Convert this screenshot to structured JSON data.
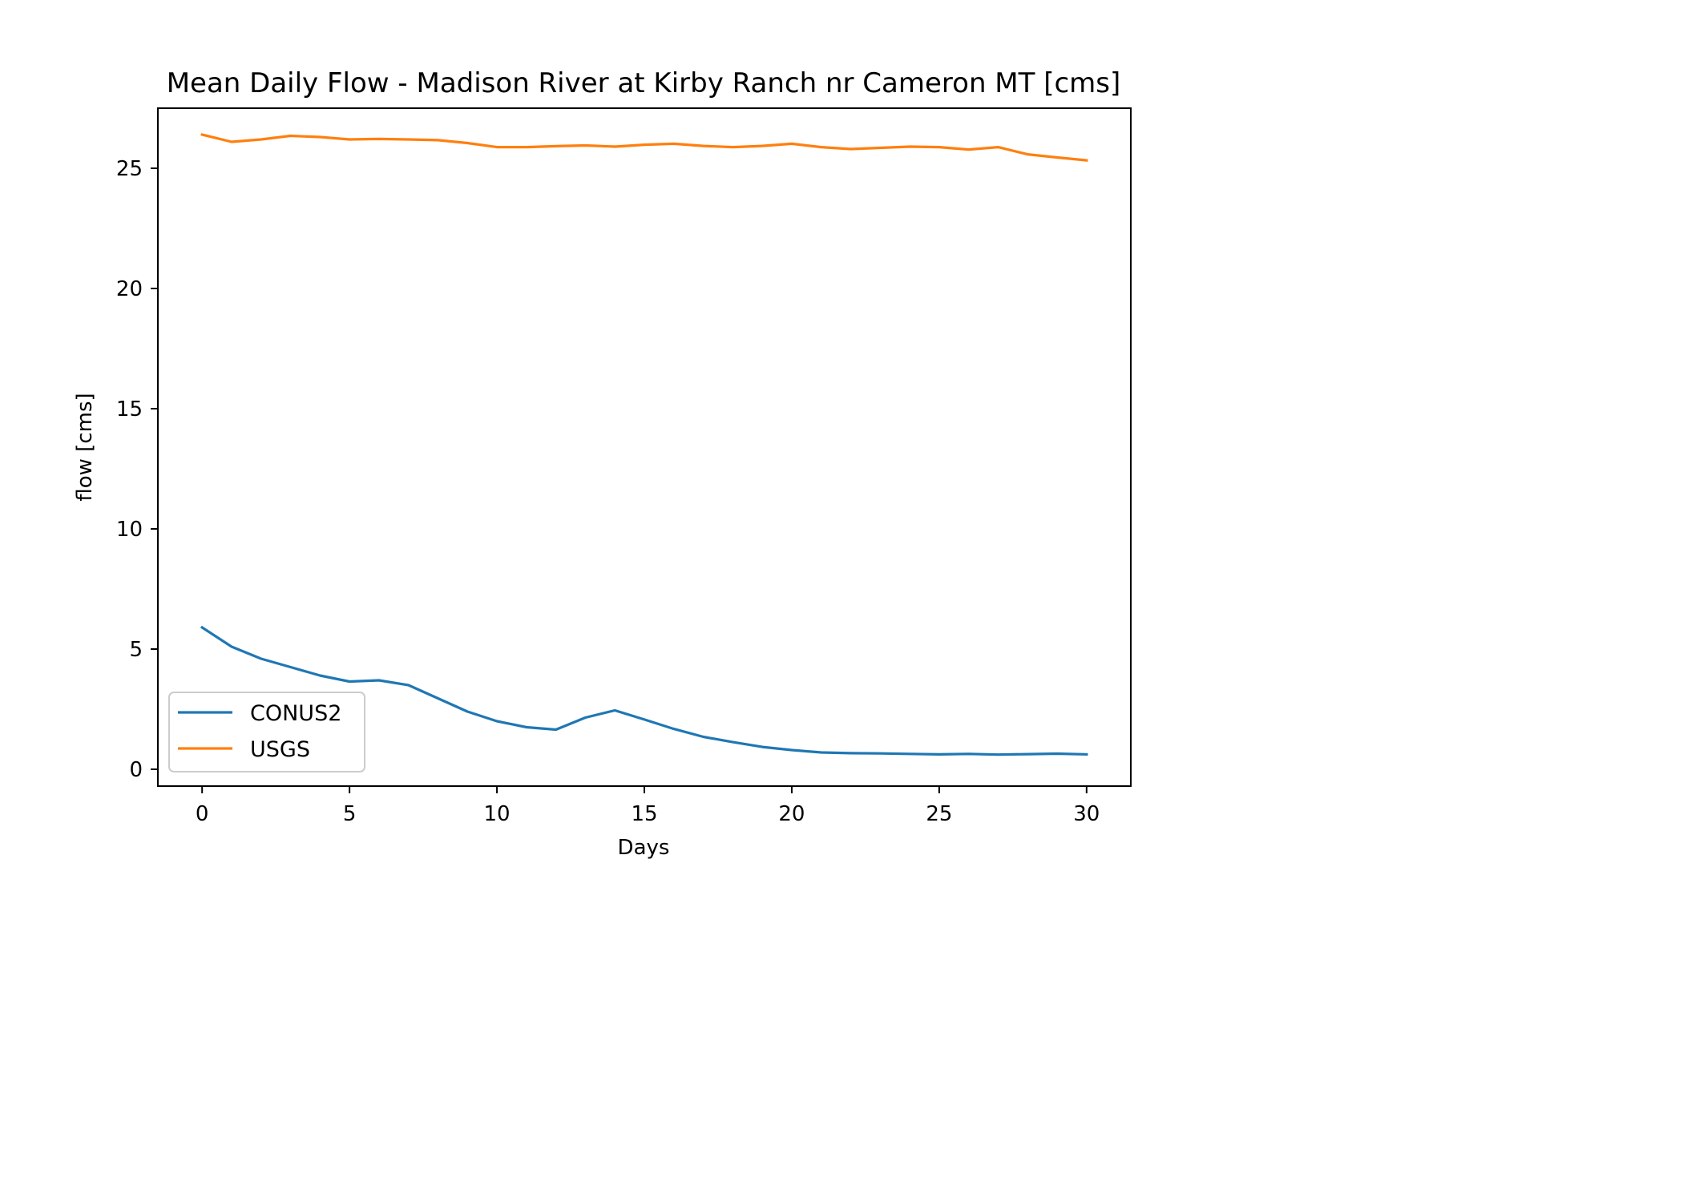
{
  "chart_data": {
    "type": "line",
    "title": "Mean Daily Flow - Madison River at Kirby Ranch nr Cameron MT [cms]",
    "xlabel": "Days",
    "ylabel": "flow [cms]",
    "xlim": [
      -1.5,
      31.5
    ],
    "ylim": [
      -0.7,
      27.5
    ],
    "xticks": [
      0,
      5,
      10,
      15,
      20,
      25,
      30
    ],
    "xtick_labels": [
      "0",
      "5",
      "10",
      "15",
      "20",
      "25",
      "30"
    ],
    "yticks": [
      0,
      5,
      10,
      15,
      20,
      25
    ],
    "ytick_labels": [
      "0",
      "5",
      "10",
      "15",
      "20",
      "25"
    ],
    "grid": false,
    "legend_position": "lower-left",
    "x": [
      0,
      1,
      2,
      3,
      4,
      5,
      6,
      7,
      8,
      9,
      10,
      11,
      12,
      13,
      14,
      15,
      16,
      17,
      18,
      19,
      20,
      21,
      22,
      23,
      24,
      25,
      26,
      27,
      28,
      29,
      30
    ],
    "series": [
      {
        "name": "CONUS2",
        "color": "#1f77b4",
        "values": [
          5.9,
          5.1,
          4.6,
          4.25,
          3.9,
          3.65,
          3.7,
          3.5,
          2.95,
          2.4,
          2.0,
          1.75,
          1.65,
          2.15,
          2.45,
          2.07,
          1.68,
          1.35,
          1.13,
          0.93,
          0.8,
          0.7,
          0.67,
          0.66,
          0.64,
          0.62,
          0.64,
          0.61,
          0.63,
          0.65,
          0.62
        ]
      },
      {
        "name": "USGS",
        "color": "#ff7f0e",
        "values": [
          26.4,
          26.1,
          26.2,
          26.35,
          26.3,
          26.2,
          26.22,
          26.2,
          26.17,
          26.05,
          25.88,
          25.88,
          25.92,
          25.95,
          25.9,
          25.98,
          26.02,
          25.93,
          25.88,
          25.93,
          26.02,
          25.88,
          25.8,
          25.85,
          25.9,
          25.88,
          25.78,
          25.88,
          25.58,
          25.45,
          25.33
        ]
      }
    ]
  }
}
